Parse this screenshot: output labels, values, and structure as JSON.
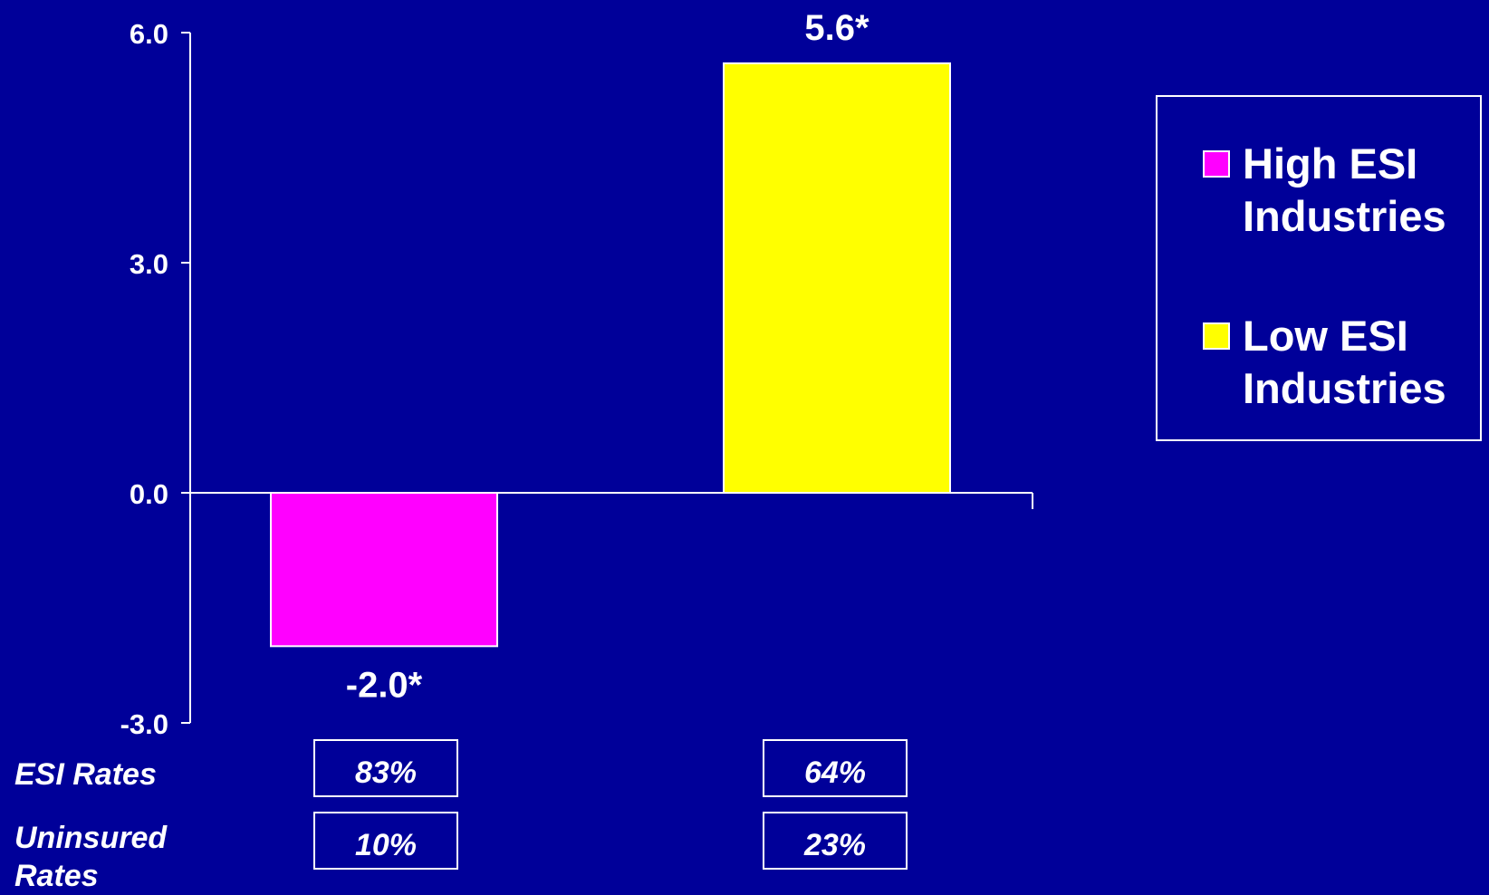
{
  "chart_data": {
    "type": "bar",
    "categories": [
      "High ESI Industries",
      "Low ESI Industries"
    ],
    "values": [
      -2.0,
      5.6
    ],
    "value_labels": [
      "-2.0*",
      "5.6*"
    ],
    "colors": [
      "#ff00ff",
      "#ffff00"
    ],
    "ylim": [
      -3.0,
      6.0
    ],
    "yticks": [
      6.0,
      3.0,
      0.0,
      -3.0
    ],
    "ytick_labels": [
      "6.0",
      "3.0",
      "0.0",
      "-3.0"
    ],
    "xlabel": "",
    "ylabel": "",
    "title": "",
    "legend_position": "right"
  },
  "legend": {
    "items": [
      {
        "label": "High ESI Industries",
        "color": "#ff00ff"
      },
      {
        "label": "Low ESI Industries",
        "color": "#ffff00"
      }
    ]
  },
  "table": {
    "esi_label": "ESI Rates",
    "uninsured_label": "Uninsured Rates",
    "esi_rates": [
      "83%",
      "64%"
    ],
    "uninsured_rates": [
      "10%",
      "23%"
    ]
  },
  "colors": {
    "background": "#000099",
    "axis": "#ffffff"
  }
}
